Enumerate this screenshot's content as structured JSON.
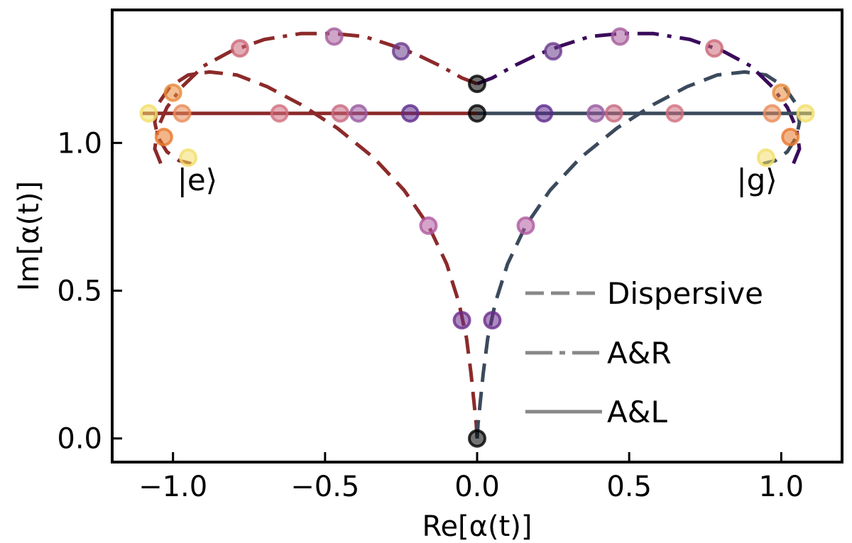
{
  "chart_data": {
    "type": "line",
    "xlabel": "Re[α(t)]",
    "ylabel": "Im[α(t)]",
    "xlim": [
      -1.2,
      1.2
    ],
    "ylim": [
      -0.08,
      1.45
    ],
    "xticks": [
      -1.0,
      -0.5,
      0.0,
      0.5,
      1.0
    ],
    "xtick_labels": [
      "−1.0",
      "−0.5",
      "0.0",
      "0.5",
      "1.0"
    ],
    "yticks": [
      0.0,
      0.5,
      1.0
    ],
    "ytick_labels": [
      "0.0",
      "0.5",
      "1.0"
    ],
    "grid": false,
    "legend_position": "bottom-right",
    "legend": [
      {
        "label": "Dispersive",
        "style": "dashed",
        "color": "#888888"
      },
      {
        "label": "A&R",
        "style": "dashdot",
        "color": "#888888"
      },
      {
        "label": "A&L",
        "style": "solid",
        "color": "#888888"
      }
    ],
    "state_labels": [
      {
        "text": "|e⟩",
        "x": -0.92,
        "y": 0.84
      },
      {
        "text": "|g⟩",
        "x": 0.92,
        "y": 0.84
      }
    ],
    "series": [
      {
        "style": "dashed",
        "color": "#8c2a2a",
        "x": [
          0.0,
          -0.003,
          -0.01,
          -0.02,
          -0.035,
          -0.06,
          -0.1,
          -0.16,
          -0.24,
          -0.34,
          -0.46,
          -0.58,
          -0.69,
          -0.79,
          -0.88,
          -0.95,
          -1.01,
          -1.05,
          -1.06,
          -1.05,
          -1.02,
          -0.98,
          -0.94
        ],
        "y": [
          0.0,
          0.05,
          0.12,
          0.22,
          0.34,
          0.46,
          0.59,
          0.72,
          0.84,
          0.95,
          1.05,
          1.13,
          1.19,
          1.23,
          1.24,
          1.23,
          1.19,
          1.13,
          1.07,
          1.02,
          0.97,
          0.94,
          0.93
        ]
      },
      {
        "style": "dashed",
        "color": "#3b4a5c",
        "x": [
          0.0,
          0.003,
          0.01,
          0.02,
          0.035,
          0.06,
          0.1,
          0.16,
          0.24,
          0.34,
          0.46,
          0.58,
          0.69,
          0.79,
          0.88,
          0.95,
          1.01,
          1.05,
          1.06,
          1.05,
          1.02,
          0.98,
          0.94
        ],
        "y": [
          0.0,
          0.05,
          0.12,
          0.22,
          0.34,
          0.46,
          0.59,
          0.72,
          0.84,
          0.95,
          1.05,
          1.13,
          1.19,
          1.23,
          1.24,
          1.23,
          1.19,
          1.13,
          1.07,
          1.02,
          0.97,
          0.94,
          0.93
        ]
      },
      {
        "style": "dashdot",
        "color": "#8c2a2a",
        "x": [
          0.0,
          -0.05,
          -0.12,
          -0.2,
          -0.28,
          -0.37,
          -0.47,
          -0.58,
          -0.7,
          -0.81,
          -0.9,
          -0.97,
          -1.02,
          -1.05,
          -1.06,
          -1.04
        ],
        "y": [
          1.2,
          1.22,
          1.26,
          1.3,
          1.33,
          1.36,
          1.37,
          1.37,
          1.35,
          1.31,
          1.26,
          1.19,
          1.12,
          1.05,
          0.98,
          0.93
        ]
      },
      {
        "style": "dashdot",
        "color": "#3a0a5a",
        "x": [
          0.0,
          0.05,
          0.12,
          0.2,
          0.28,
          0.37,
          0.47,
          0.58,
          0.7,
          0.81,
          0.9,
          0.97,
          1.02,
          1.05,
          1.06,
          1.04
        ],
        "y": [
          1.2,
          1.22,
          1.26,
          1.3,
          1.33,
          1.36,
          1.37,
          1.37,
          1.35,
          1.31,
          1.26,
          1.19,
          1.12,
          1.05,
          0.98,
          0.93
        ]
      },
      {
        "style": "solid",
        "color": "#8c2a2a",
        "x": [
          0.0,
          -1.1
        ],
        "y": [
          1.1,
          1.1
        ]
      },
      {
        "style": "solid",
        "color": "#3b4a5c",
        "x": [
          0.0,
          1.1
        ],
        "y": [
          1.1,
          1.1
        ]
      }
    ],
    "markers": [
      {
        "x": 0.0,
        "y": 0.0,
        "color": "#000000"
      },
      {
        "x": 0.0,
        "y": 1.1,
        "color": "#000000"
      },
      {
        "x": 0.0,
        "y": 1.2,
        "color": "#000000"
      },
      {
        "x": -0.05,
        "y": 0.4,
        "color": "#6a2c8c"
      },
      {
        "x": 0.05,
        "y": 0.4,
        "color": "#6a2c8c"
      },
      {
        "x": -0.16,
        "y": 0.72,
        "color": "#b05aa0"
      },
      {
        "x": 0.16,
        "y": 0.72,
        "color": "#b05aa0"
      },
      {
        "x": -0.78,
        "y": 1.32,
        "color": "#cc6878"
      },
      {
        "x": -0.47,
        "y": 1.36,
        "color": "#a65c9c"
      },
      {
        "x": -0.25,
        "y": 1.31,
        "color": "#6a3a8c"
      },
      {
        "x": 0.25,
        "y": 1.31,
        "color": "#6a3a8c"
      },
      {
        "x": 0.47,
        "y": 1.36,
        "color": "#a65c9c"
      },
      {
        "x": 0.78,
        "y": 1.32,
        "color": "#cc6878"
      },
      {
        "x": -1.08,
        "y": 1.1,
        "color": "#f3df6a"
      },
      {
        "x": -0.97,
        "y": 1.1,
        "color": "#e88c5a"
      },
      {
        "x": -0.65,
        "y": 1.1,
        "color": "#d27080"
      },
      {
        "x": -0.45,
        "y": 1.1,
        "color": "#c86a82"
      },
      {
        "x": -0.39,
        "y": 1.1,
        "color": "#9a5aa0"
      },
      {
        "x": -0.22,
        "y": 1.1,
        "color": "#5c2a8c"
      },
      {
        "x": 0.22,
        "y": 1.1,
        "color": "#5c2a8c"
      },
      {
        "x": 0.39,
        "y": 1.1,
        "color": "#9a5aa0"
      },
      {
        "x": 0.45,
        "y": 1.1,
        "color": "#c86a82"
      },
      {
        "x": 0.65,
        "y": 1.1,
        "color": "#d27080"
      },
      {
        "x": 0.97,
        "y": 1.1,
        "color": "#e88c5a"
      },
      {
        "x": 1.08,
        "y": 1.1,
        "color": "#f3df6a"
      },
      {
        "x": -1.0,
        "y": 1.17,
        "color": "#e88a3a"
      },
      {
        "x": 1.0,
        "y": 1.17,
        "color": "#e88a3a"
      },
      {
        "x": -1.03,
        "y": 1.02,
        "color": "#e8782a"
      },
      {
        "x": 1.03,
        "y": 1.02,
        "color": "#e8782a"
      },
      {
        "x": -0.95,
        "y": 0.95,
        "color": "#f3df6a"
      },
      {
        "x": 0.95,
        "y": 0.95,
        "color": "#f3df6a"
      }
    ]
  }
}
